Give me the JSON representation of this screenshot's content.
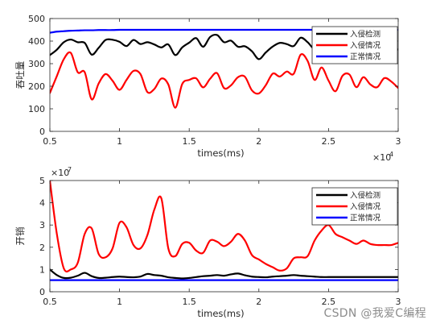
{
  "watermark": "CSDN @我爱C编程",
  "chart_data": [
    {
      "type": "line",
      "title": "",
      "xlabel": "times(ms)",
      "ylabel": "吞吐量",
      "xlim": [
        5000,
        30000
      ],
      "ylim": [
        0,
        500
      ],
      "xticks": [
        5000,
        10000,
        15000,
        20000,
        25000,
        30000
      ],
      "xtick_labels": [
        "0.5",
        "1",
        "1.5",
        "2",
        "2.5",
        "3"
      ],
      "x_exponent": "× 10^4",
      "x_exponent_base": "×10",
      "x_exponent_power": "4",
      "yticks": [
        0,
        100,
        200,
        300,
        400,
        500
      ],
      "ytick_labels": [
        "0",
        "100",
        "200",
        "300",
        "400",
        "500"
      ],
      "grid": false,
      "legend_position": "top-right",
      "x": [
        5000,
        5500,
        6000,
        6500,
        7000,
        7500,
        8000,
        8500,
        9000,
        9500,
        10000,
        10500,
        11000,
        11500,
        12000,
        12500,
        13000,
        13500,
        14000,
        14500,
        15000,
        15500,
        16000,
        16500,
        17000,
        17500,
        18000,
        18500,
        19000,
        19500,
        20000,
        20500,
        21000,
        21500,
        22000,
        22500,
        23000,
        23500,
        24000,
        24500,
        25000,
        25500,
        26000,
        26500,
        27000,
        27500,
        28000,
        28500,
        29000,
        29500,
        30000
      ],
      "series": [
        {
          "name": "入侵检测",
          "color": "#000000",
          "values": [
            338,
            362,
            395,
            407,
            395,
            392,
            340,
            370,
            405,
            406,
            397,
            378,
            405,
            387,
            395,
            385,
            372,
            385,
            338,
            372,
            393,
            413,
            375,
            418,
            427,
            395,
            402,
            375,
            377,
            355,
            320,
            350,
            376,
            392,
            387,
            378,
            415,
            395,
            365,
            390,
            383,
            373,
            387,
            395,
            385,
            376,
            375,
            378,
            385,
            377,
            362
          ]
        },
        {
          "name": "入侵情况",
          "color": "#ff0000",
          "values": [
            170,
            245,
            320,
            348,
            262,
            262,
            142,
            212,
            254,
            224,
            184,
            228,
            268,
            254,
            174,
            188,
            234,
            208,
            105,
            210,
            228,
            235,
            195,
            233,
            258,
            192,
            204,
            240,
            242,
            182,
            168,
            205,
            256,
            243,
            265,
            255,
            340,
            312,
            228,
            283,
            225,
            178,
            246,
            252,
            196,
            240,
            208,
            196,
            236,
            221,
            192
          ]
        },
        {
          "name": "正常情况",
          "color": "#0000ff",
          "values": [
            437,
            442,
            444,
            446,
            447,
            448,
            448,
            449,
            449,
            449,
            450,
            450,
            450,
            450,
            450,
            450,
            450,
            450,
            450,
            450,
            450,
            450,
            450,
            450,
            450,
            450,
            450,
            450,
            450,
            450,
            450,
            450,
            450,
            450,
            450,
            450,
            450,
            450,
            450,
            450,
            450,
            450,
            450,
            450,
            450,
            450,
            450,
            450,
            450,
            450,
            450
          ]
        }
      ]
    },
    {
      "type": "line",
      "title": "",
      "xlabel": "times(ms)",
      "ylabel": "开销",
      "xlim": [
        5000,
        30000
      ],
      "ylim": [
        0,
        5
      ],
      "y_multiplier": "× 10^7",
      "y_multiplier_base": "×10",
      "y_multiplier_power": "7",
      "xticks": [
        5000,
        10000,
        15000,
        20000,
        25000,
        30000
      ],
      "xtick_labels": [
        "0.5",
        "1",
        "1.5",
        "2",
        "2.5",
        "3"
      ],
      "yticks": [
        0,
        1,
        2,
        3,
        4,
        5
      ],
      "ytick_labels": [
        "0",
        "1",
        "2",
        "3",
        "4",
        "5"
      ],
      "grid": false,
      "legend_position": "top-right",
      "x": [
        5000,
        5500,
        6000,
        6500,
        7000,
        7500,
        8000,
        8500,
        9000,
        9500,
        10000,
        10500,
        11000,
        11500,
        12000,
        12500,
        13000,
        13500,
        14000,
        14500,
        15000,
        15500,
        16000,
        16500,
        17000,
        17500,
        18000,
        18500,
        19000,
        19500,
        20000,
        20500,
        21000,
        21500,
        22000,
        22500,
        23000,
        23500,
        24000,
        24500,
        25000,
        25500,
        26000,
        26500,
        27000,
        27500,
        28000,
        28500,
        29000,
        29500,
        30000
      ],
      "series": [
        {
          "name": "入侵检测",
          "color": "#000000",
          "values": [
            1.0,
            0.75,
            0.62,
            0.63,
            0.72,
            0.85,
            0.7,
            0.62,
            0.63,
            0.66,
            0.68,
            0.66,
            0.65,
            0.68,
            0.8,
            0.75,
            0.72,
            0.65,
            0.62,
            0.6,
            0.62,
            0.66,
            0.7,
            0.72,
            0.75,
            0.72,
            0.78,
            0.82,
            0.74,
            0.68,
            0.66,
            0.65,
            0.68,
            0.7,
            0.72,
            0.75,
            0.72,
            0.7,
            0.68,
            0.66,
            0.66,
            0.66,
            0.66,
            0.66,
            0.66,
            0.66,
            0.66,
            0.66,
            0.66,
            0.66,
            0.66
          ]
        },
        {
          "name": "入侵情况",
          "color": "#ff0000",
          "values": [
            5.0,
            2.6,
            1.05,
            1.0,
            1.3,
            2.6,
            2.85,
            1.7,
            1.55,
            1.95,
            3.1,
            2.9,
            2.1,
            1.95,
            2.55,
            3.7,
            4.2,
            1.95,
            1.6,
            2.15,
            2.2,
            1.85,
            1.75,
            2.3,
            2.25,
            2.05,
            2.25,
            2.6,
            2.3,
            1.65,
            1.45,
            1.25,
            1.1,
            0.95,
            1.05,
            1.5,
            1.55,
            1.6,
            2.3,
            2.75,
            3.0,
            2.6,
            2.45,
            2.3,
            2.15,
            2.3,
            2.15,
            2.1,
            2.1,
            2.1,
            2.2
          ]
        },
        {
          "name": "正常情况",
          "color": "#0000ff",
          "values": [
            0.52,
            0.52,
            0.52,
            0.52,
            0.52,
            0.52,
            0.52,
            0.52,
            0.52,
            0.52,
            0.52,
            0.52,
            0.52,
            0.52,
            0.52,
            0.52,
            0.52,
            0.52,
            0.52,
            0.52,
            0.52,
            0.52,
            0.52,
            0.52,
            0.52,
            0.52,
            0.52,
            0.52,
            0.52,
            0.52,
            0.52,
            0.52,
            0.52,
            0.52,
            0.52,
            0.52,
            0.52,
            0.52,
            0.52,
            0.52,
            0.52,
            0.52,
            0.52,
            0.52,
            0.52,
            0.52,
            0.52,
            0.52,
            0.52,
            0.52,
            0.52
          ]
        }
      ]
    }
  ]
}
